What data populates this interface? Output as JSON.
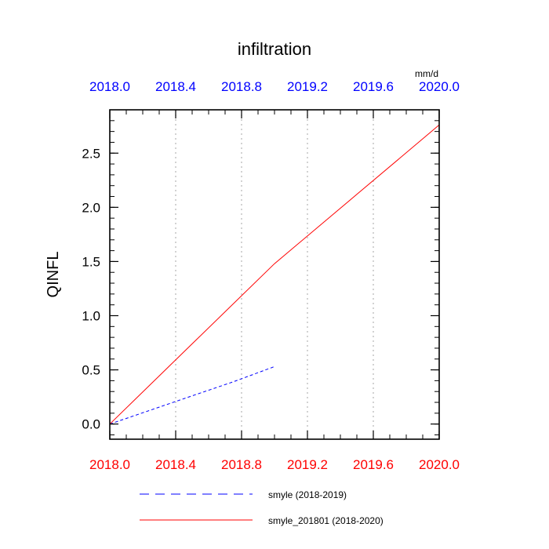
{
  "chart_data": {
    "type": "line",
    "title": "infiltration",
    "units": "mm/d",
    "ylabel": "QINFL",
    "xlabel": "",
    "xlim": [
      2018.0,
      2020.0
    ],
    "ylim": [
      -0.14,
      2.9
    ],
    "x_ticks": [
      "2018.0",
      "2018.4",
      "2018.8",
      "2019.2",
      "2019.6",
      "2020.0"
    ],
    "x_tick_values": [
      2018.0,
      2018.4,
      2018.8,
      2019.2,
      2019.6,
      2020.0
    ],
    "y_ticks": [
      "0.0",
      "0.5",
      "1.0",
      "1.5",
      "2.0",
      "2.5"
    ],
    "y_tick_values": [
      0.0,
      0.5,
      1.0,
      1.5,
      2.0,
      2.5
    ],
    "grid": "vertical dotted",
    "legend_position": "bottom",
    "colors": {
      "top_axis_labels": "#0000ff",
      "bottom_axis_labels": "#ff0000",
      "axis": "#000000",
      "grid": "#bbbbbb"
    },
    "series": [
      {
        "name": "smyle (2018-2019)",
        "color": "#0000ff",
        "dash": "dashed",
        "x": [
          2018.0,
          2018.25,
          2018.5,
          2018.75,
          2019.0
        ],
        "y": [
          0.0,
          0.13,
          0.26,
          0.39,
          0.53
        ]
      },
      {
        "name": "smyle_201801 (2018-2020)",
        "color": "#ff0000",
        "dash": "solid",
        "x": [
          2018.0,
          2018.5,
          2019.0,
          2019.5,
          2020.0
        ],
        "y": [
          0.0,
          0.74,
          1.48,
          2.12,
          2.76
        ]
      }
    ]
  }
}
